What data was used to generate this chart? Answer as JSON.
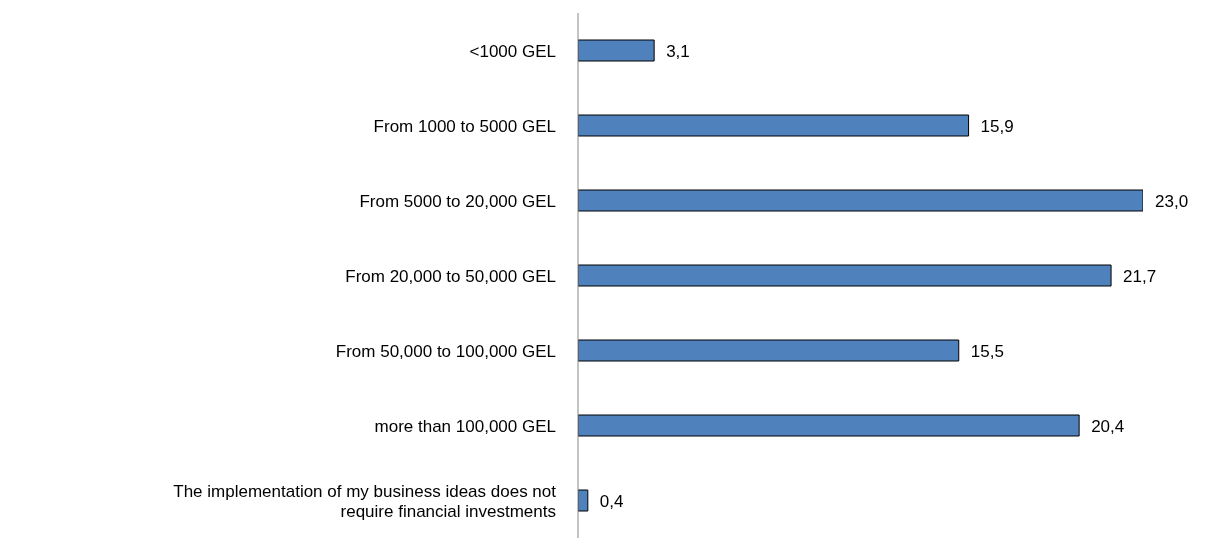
{
  "chart_data": {
    "type": "bar",
    "orientation": "horizontal",
    "categories": [
      "<1000 GEL",
      "From 1000 to 5000 GEL",
      "From 5000 to 20,000 GEL",
      "From 20,000 to 50,000 GEL",
      "From 50,000 to 100,000 GEL",
      "more than 100,000 GEL",
      "The implementation of my business ideas does not require financial investments"
    ],
    "values": [
      3.1,
      15.9,
      23.0,
      21.7,
      15.5,
      20.4,
      0.4
    ],
    "value_labels": [
      "3,1",
      "15,9",
      "23,0",
      "21,7",
      "15,5",
      "20,4",
      "0,4"
    ],
    "color": "#4f81bd",
    "grid": false,
    "legend": false
  }
}
